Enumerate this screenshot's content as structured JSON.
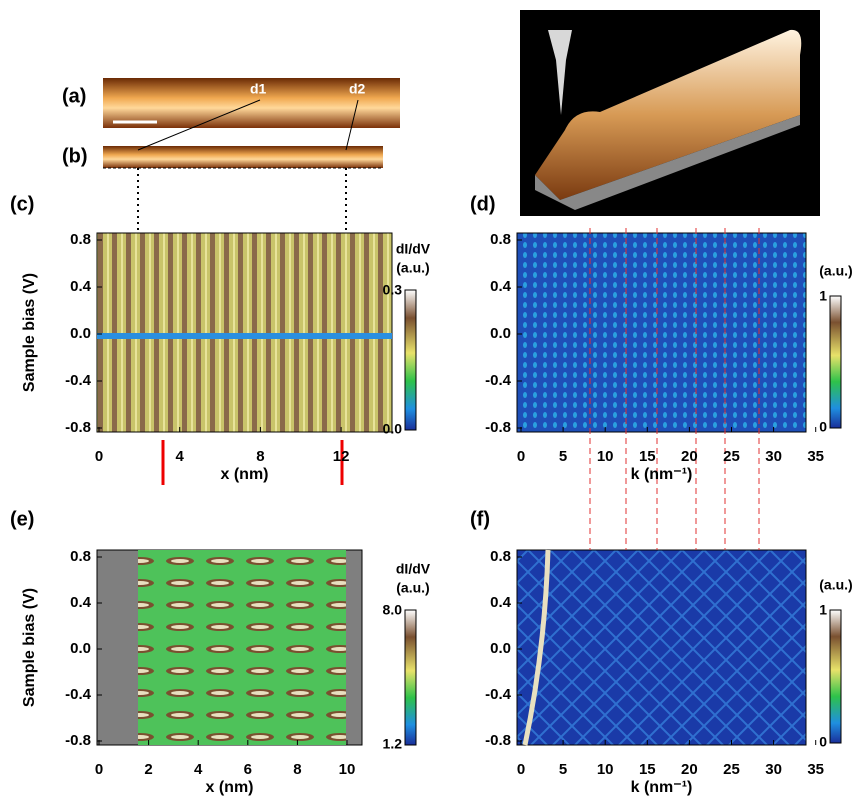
{
  "panels": {
    "a": {
      "label": "(a)",
      "markers": [
        "d1",
        "d2"
      ]
    },
    "b": {
      "label": "(b)"
    },
    "c": {
      "label": "(c)",
      "y_label": "Sample bias (V)",
      "x_label": "x (nm)",
      "y_ticks": [
        "0.8",
        "0.4",
        "0.0",
        "-0.4",
        "-0.8"
      ],
      "x_ticks": [
        "0",
        "4",
        "8",
        "12"
      ],
      "colorbar": {
        "title": "dI/dV",
        "unit": "(a.u.)",
        "max": "0.3",
        "min": "0.0"
      }
    },
    "d": {
      "label": "(d)",
      "x_label": "k (nm⁻¹)",
      "y_ticks": [
        "0.8",
        "0.4",
        "0.0",
        "-0.4",
        "-0.8"
      ],
      "x_ticks": [
        "0",
        "5",
        "10",
        "15",
        "20",
        "25",
        "30",
        "35"
      ],
      "colorbar": {
        "unit": "(a.u.)",
        "max": "1",
        "min": "0"
      }
    },
    "e": {
      "label": "(e)",
      "y_label": "Sample bias (V)",
      "x_label": "x (nm)",
      "y_ticks": [
        "0.8",
        "0.4",
        "0.0",
        "-0.4",
        "-0.8"
      ],
      "x_ticks": [
        "0",
        "2",
        "4",
        "6",
        "8",
        "10"
      ],
      "colorbar": {
        "title": "dI/dV",
        "unit": "(a.u.)",
        "max": "8.0",
        "min": "1.2"
      }
    },
    "f": {
      "label": "(f)",
      "x_label": "k (nm⁻¹)",
      "y_ticks": [
        "0.8",
        "0.4",
        "0.0",
        "-0.4",
        "-0.8"
      ],
      "x_ticks": [
        "0",
        "5",
        "10",
        "15",
        "20",
        "25",
        "30",
        "35"
      ],
      "colorbar": {
        "unit": "(a.u.)",
        "max": "1",
        "min": "0"
      }
    }
  }
}
